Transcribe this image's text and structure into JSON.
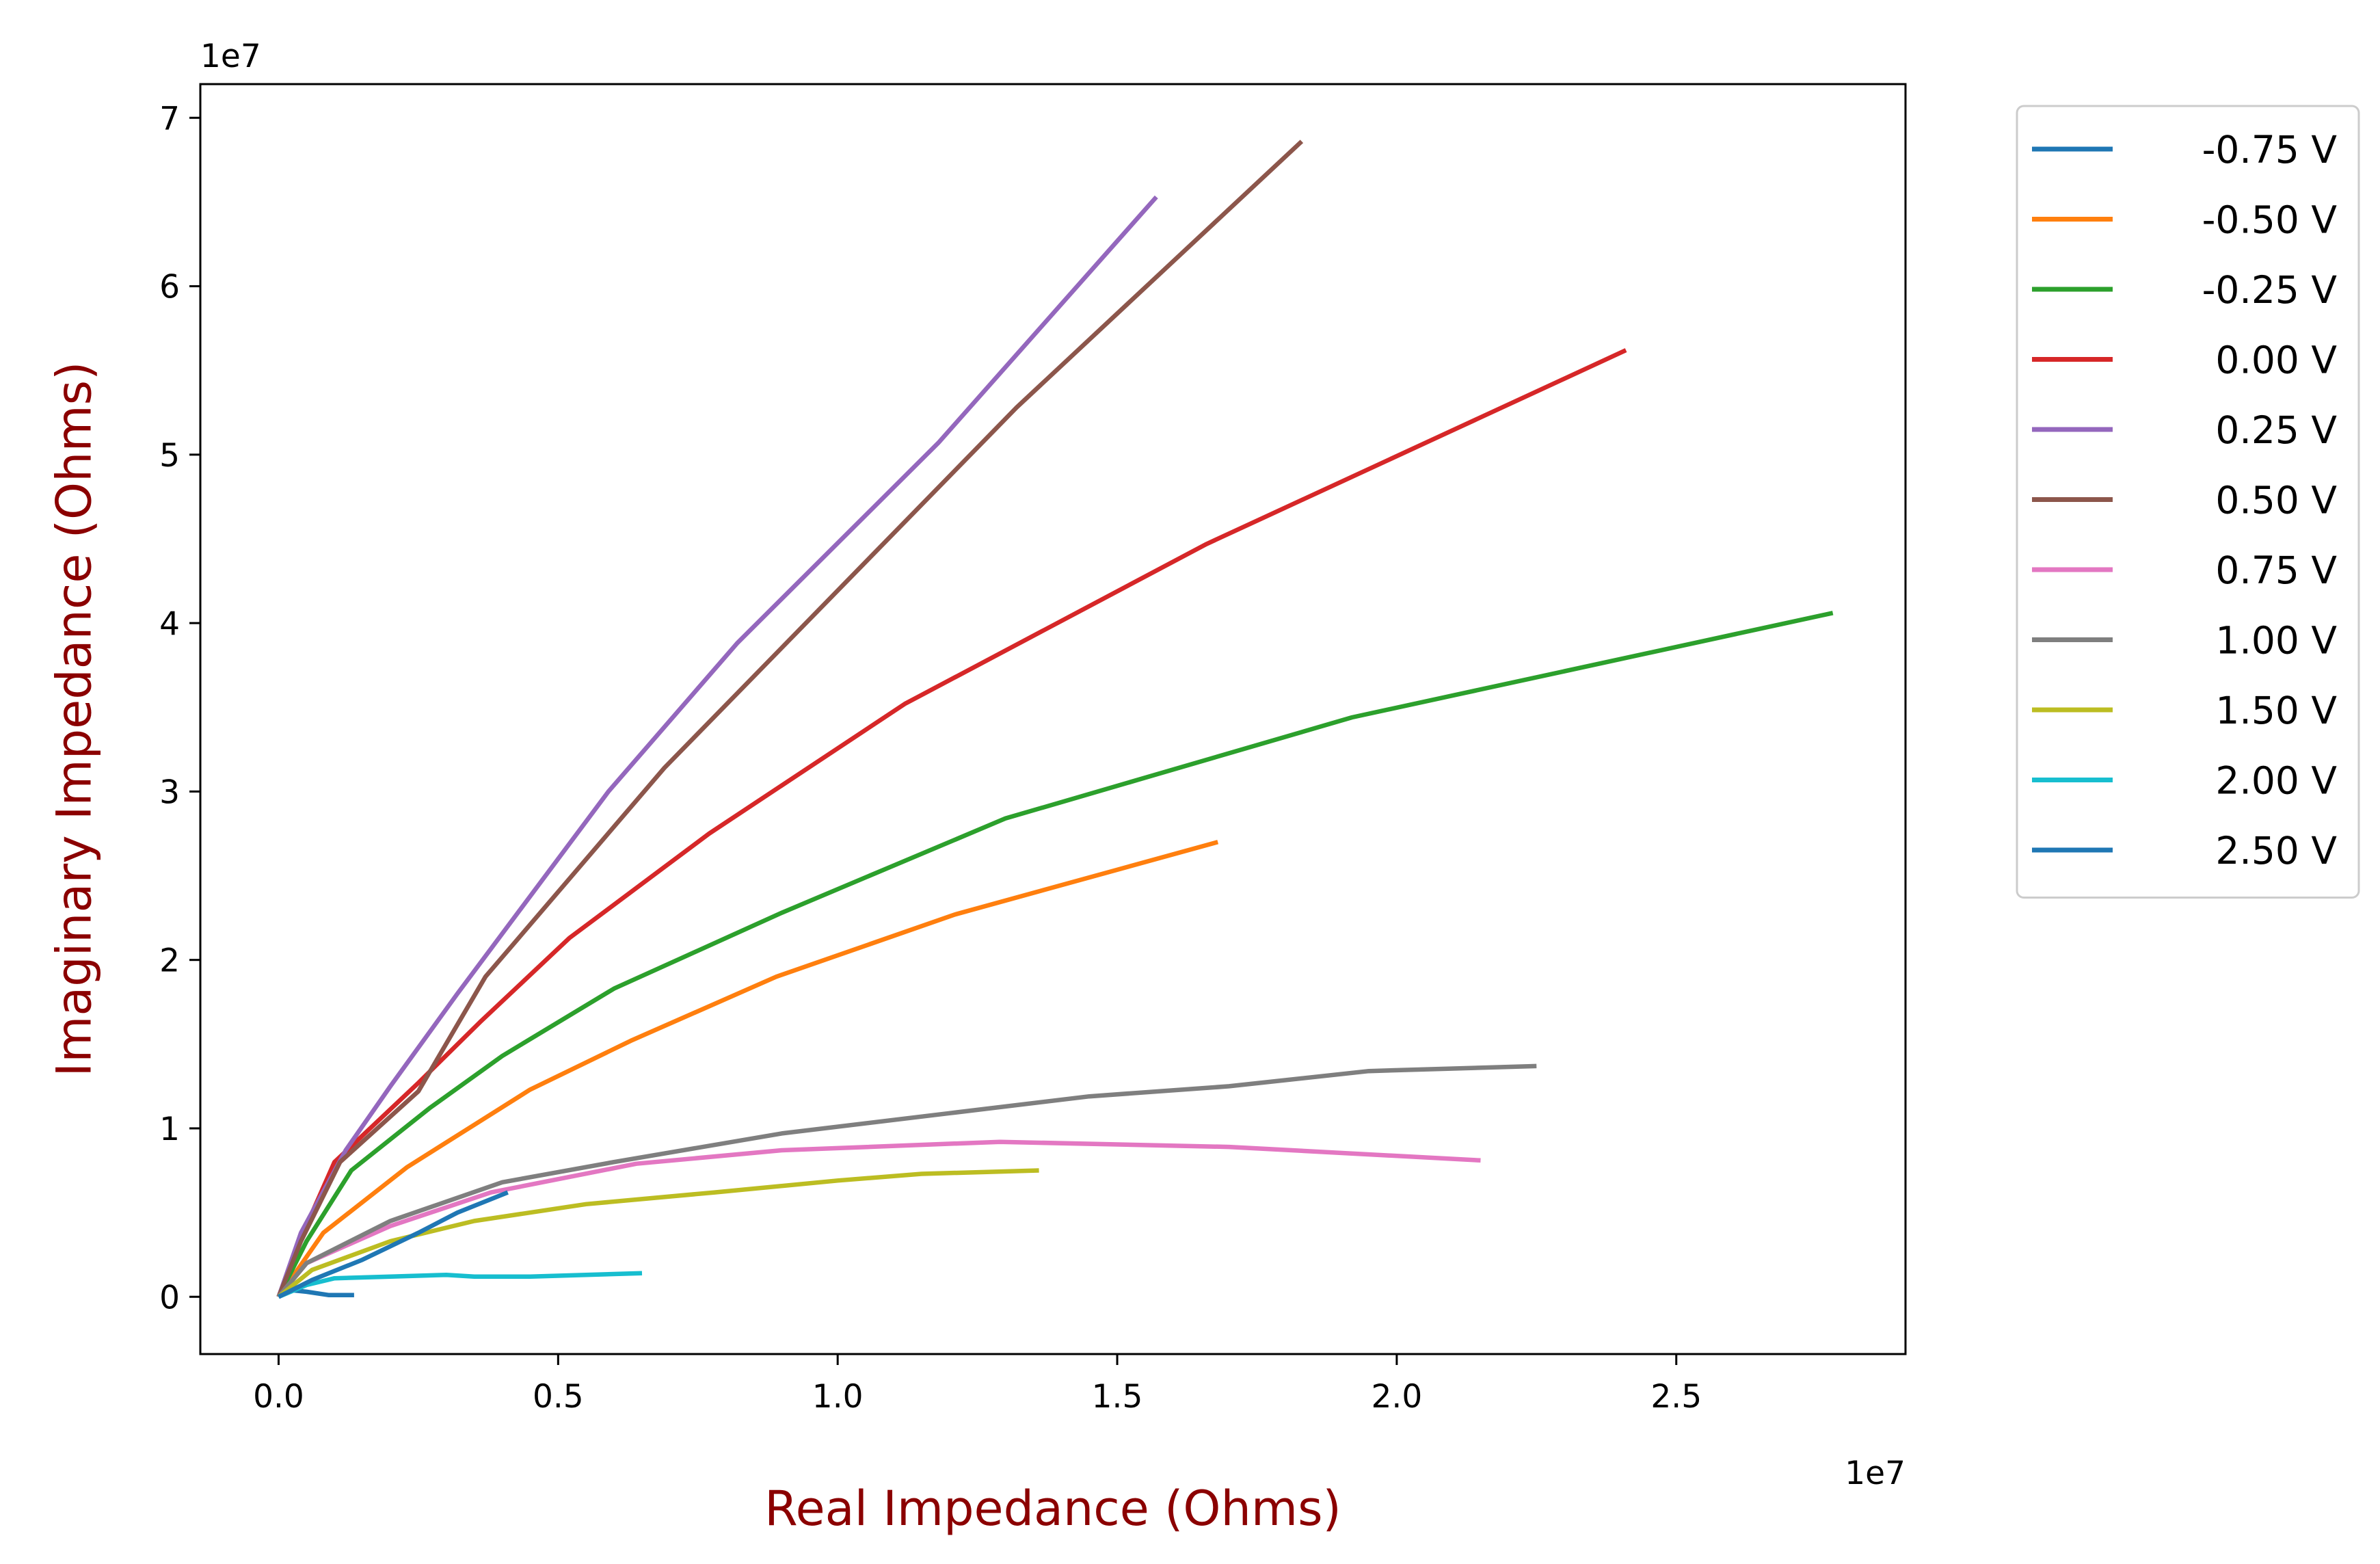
{
  "chart_data": {
    "type": "line",
    "title": "",
    "xlabel": "Real Impedance (Ohms)",
    "ylabel": "Imaginary Impedance (Ohms)",
    "x_offset_label": "1e7",
    "y_offset_label": "1e7",
    "xlim": [
      -0.14,
      2.91
    ],
    "ylim": [
      -0.34,
      7.2
    ],
    "x_ticks": [
      0.0,
      0.5,
      1.0,
      1.5,
      2.0,
      2.5
    ],
    "x_tick_labels": [
      "0.0",
      "0.5",
      "1.0",
      "1.5",
      "2.0",
      "2.5"
    ],
    "y_ticks": [
      0,
      1,
      2,
      3,
      4,
      5,
      6,
      7
    ],
    "y_tick_labels": [
      "0",
      "1",
      "2",
      "3",
      "4",
      "5",
      "6",
      "7"
    ],
    "grid": false,
    "legend_position": "outside-right-top",
    "series": [
      {
        "name": "-0.75 V",
        "color": "#1f77b4",
        "x": [
          0.0,
          0.02,
          0.05,
          0.09,
          0.135
        ],
        "y": [
          0.0,
          0.04,
          0.03,
          0.01,
          0.01
        ]
      },
      {
        "name": "-0.50 V",
        "color": "#ff7f0e",
        "x": [
          0.0,
          0.08,
          0.23,
          0.45,
          0.63,
          0.89,
          1.21,
          1.68
        ],
        "y": [
          0.0,
          0.38,
          0.77,
          1.23,
          1.52,
          1.9,
          2.27,
          2.7
        ]
      },
      {
        "name": "-0.25 V",
        "color": "#2ca02c",
        "x": [
          0.0,
          0.05,
          0.13,
          0.27,
          0.4,
          0.6,
          0.9,
          1.3,
          1.92,
          2.78
        ],
        "y": [
          0.0,
          0.33,
          0.75,
          1.12,
          1.43,
          1.83,
          2.28,
          2.84,
          3.44,
          4.06
        ]
      },
      {
        "name": "0.00 V",
        "color": "#d62728",
        "x": [
          0.0,
          0.04,
          0.1,
          0.25,
          0.36,
          0.52,
          0.77,
          1.12,
          1.66,
          2.41
        ],
        "y": [
          0.0,
          0.35,
          0.8,
          1.27,
          1.63,
          2.13,
          2.75,
          3.52,
          4.47,
          5.62
        ]
      },
      {
        "name": "0.25 V",
        "color": "#9467bd",
        "x": [
          0.0,
          0.04,
          0.12,
          0.2,
          0.32,
          0.59,
          0.82,
          1.18,
          1.57
        ],
        "y": [
          0.0,
          0.38,
          0.87,
          1.25,
          1.8,
          3.0,
          3.88,
          5.07,
          6.53
        ]
      },
      {
        "name": "0.50 V",
        "color": "#8c564b",
        "x": [
          0.0,
          0.04,
          0.11,
          0.25,
          0.37,
          0.69,
          1.32,
          1.83
        ],
        "y": [
          0.0,
          0.33,
          0.8,
          1.22,
          1.9,
          3.14,
          5.28,
          6.86
        ]
      },
      {
        "name": "0.75 V",
        "color": "#e377c2",
        "x": [
          0.0,
          0.05,
          0.2,
          0.38,
          0.64,
          0.9,
          1.29,
          1.7,
          2.15
        ],
        "y": [
          0.0,
          0.2,
          0.42,
          0.62,
          0.79,
          0.87,
          0.92,
          0.89,
          0.81
        ]
      },
      {
        "name": "1.00 V",
        "color": "#7f7f7f",
        "x": [
          0.0,
          0.05,
          0.2,
          0.4,
          0.6,
          0.9,
          1.2,
          1.45,
          1.7,
          1.95,
          2.25
        ],
        "y": [
          0.0,
          0.2,
          0.45,
          0.68,
          0.8,
          0.97,
          1.09,
          1.19,
          1.25,
          1.34,
          1.37
        ]
      },
      {
        "name": "1.50 V",
        "color": "#bcbd22",
        "x": [
          0.0,
          0.06,
          0.2,
          0.35,
          0.55,
          0.78,
          1.0,
          1.15,
          1.36
        ],
        "y": [
          0.0,
          0.16,
          0.33,
          0.45,
          0.55,
          0.62,
          0.69,
          0.73,
          0.75
        ]
      },
      {
        "name": "2.00 V",
        "color": "#17becf",
        "x": [
          0.0,
          0.05,
          0.1,
          0.2,
          0.3,
          0.35,
          0.45,
          0.55,
          0.65
        ],
        "y": [
          0.0,
          0.07,
          0.11,
          0.12,
          0.13,
          0.12,
          0.12,
          0.13,
          0.14
        ]
      },
      {
        "name": "2.50 V",
        "color": "#1f77b4",
        "x": [
          0.0,
          0.06,
          0.15,
          0.25,
          0.32,
          0.41
        ],
        "y": [
          0.0,
          0.1,
          0.22,
          0.38,
          0.5,
          0.62
        ]
      }
    ]
  }
}
